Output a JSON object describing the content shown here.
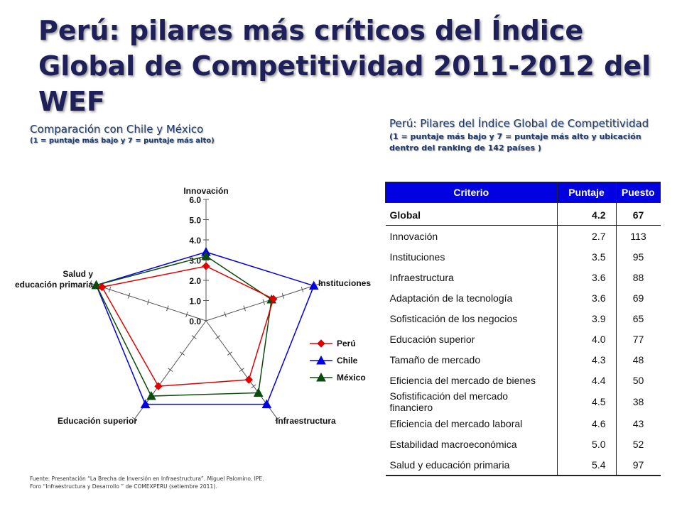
{
  "title": "Perú: pilares más críticos del Índice Global de Competitividad 2011-2012 del WEF",
  "left": {
    "heading": "Comparación con Chile y México",
    "subheading": "(1 = puntaje más bajo y 7 = puntaje más alto)"
  },
  "right": {
    "heading": "Perú: Pilares del Índice Global de Competitividad",
    "subheading": "(1 = puntaje más bajo y 7 = puntaje más alto y ubicación dentro del ranking de 142 países )"
  },
  "source": {
    "line1": "Fuente: Presentación “La Brecha de Inversión en Infraestructura”. Miguel Palomino, IPE.",
    "line2": "Foro “Infraestructura y Desarrollo ” de COMEXPERU (setiembre 2011)."
  },
  "table": {
    "headers": [
      "Criterio",
      "Puntaje",
      "Puesto"
    ],
    "rows": [
      {
        "criterio": "Global",
        "puntaje": "4.2",
        "puesto": "67"
      },
      {
        "criterio": "Innovación",
        "puntaje": "2.7",
        "puesto": "113"
      },
      {
        "criterio": "Instituciones",
        "puntaje": "3.5",
        "puesto": "95"
      },
      {
        "criterio": "Infraestructura",
        "puntaje": "3.6",
        "puesto": "88"
      },
      {
        "criterio": "Adaptación de la tecnología",
        "puntaje": "3.6",
        "puesto": "69"
      },
      {
        "criterio": "Sofisticación de los negocios",
        "puntaje": "3.9",
        "puesto": "65"
      },
      {
        "criterio": "Educación superior",
        "puntaje": "4.0",
        "puesto": "77"
      },
      {
        "criterio": "Tamaño de mercado",
        "puntaje": "4.3",
        "puesto": "48"
      },
      {
        "criterio": "Eficiencia del mercado de bienes",
        "puntaje": "4.4",
        "puesto": "50"
      },
      {
        "criterio": "Sofistificación del mercado financiero",
        "puntaje": "4.5",
        "puesto": "38"
      },
      {
        "criterio": "Eficiencia del mercado laboral",
        "puntaje": "4.6",
        "puesto": "43"
      },
      {
        "criterio": "Estabilidad macroeconómica",
        "puntaje": "5.0",
        "puesto": "52"
      },
      {
        "criterio": "Salud y educación primaria",
        "puntaje": "5.4",
        "puesto": "97"
      }
    ]
  },
  "chart_data": {
    "type": "radar",
    "axes": [
      "Innovación",
      "Instituciones",
      "Infraestructura",
      "Educación superior",
      "Salud y educación primaria"
    ],
    "rlim": [
      0,
      6
    ],
    "ticks": [
      "0.0",
      "1.0",
      "2.0",
      "3.0",
      "4.0",
      "5.0",
      "6.0"
    ],
    "series": [
      {
        "name": "Perú",
        "color": "#e00000",
        "marker": "diamond",
        "values": [
          2.7,
          3.5,
          3.6,
          4.0,
          5.4
        ]
      },
      {
        "name": "Chile",
        "color": "#0000e0",
        "marker": "triangle",
        "values": [
          3.4,
          5.6,
          5.1,
          5.1,
          5.7
        ]
      },
      {
        "name": "México",
        "color": "#0a4a0a",
        "marker": "triangle",
        "values": [
          3.2,
          3.4,
          4.4,
          4.6,
          5.7
        ]
      }
    ],
    "legend_position": "right"
  }
}
